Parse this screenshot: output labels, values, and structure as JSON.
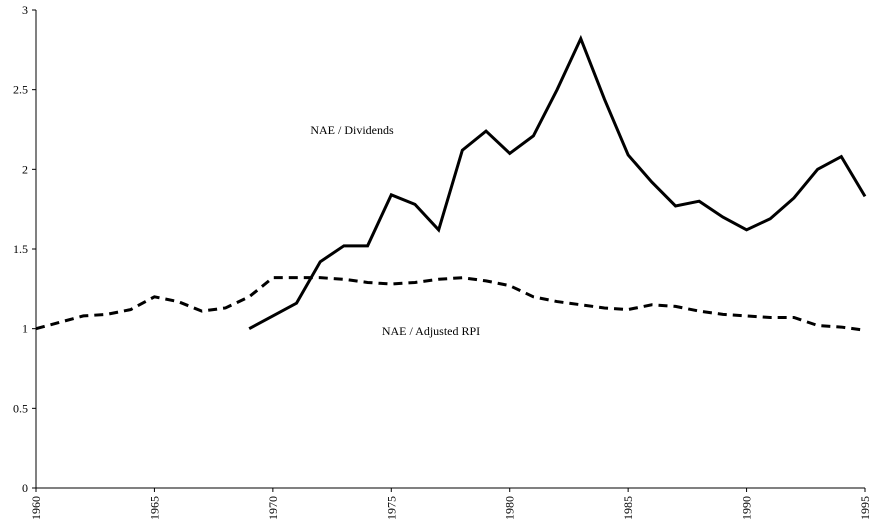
{
  "chart_data": {
    "type": "line",
    "x": [
      1960,
      1961,
      1962,
      1963,
      1964,
      1965,
      1966,
      1967,
      1968,
      1969,
      1970,
      1971,
      1972,
      1973,
      1974,
      1975,
      1976,
      1977,
      1978,
      1979,
      1980,
      1981,
      1982,
      1983,
      1984,
      1985,
      1986,
      1987,
      1988,
      1989,
      1990,
      1991,
      1992,
      1993,
      1994,
      1995
    ],
    "series": [
      {
        "name": "NAE / Dividends",
        "color": "#000000",
        "style": "solid",
        "values": [
          null,
          null,
          null,
          null,
          null,
          null,
          null,
          null,
          null,
          1.0,
          1.08,
          1.16,
          1.42,
          1.52,
          1.52,
          1.84,
          1.78,
          1.62,
          2.12,
          2.24,
          2.1,
          2.21,
          2.5,
          2.82,
          2.44,
          2.09,
          1.92,
          1.77,
          1.8,
          1.7,
          1.62,
          1.69,
          1.82,
          2.0,
          2.08,
          1.83
        ]
      },
      {
        "name": "NAE / Adjusted RPI",
        "color": "#000000",
        "style": "dashed",
        "values": [
          1.0,
          1.04,
          1.08,
          1.09,
          1.12,
          1.2,
          1.17,
          1.11,
          1.13,
          1.2,
          1.32,
          1.32,
          1.32,
          1.31,
          1.29,
          1.28,
          1.29,
          1.31,
          1.32,
          1.3,
          1.27,
          1.2,
          1.17,
          1.15,
          1.13,
          1.12,
          1.15,
          1.14,
          1.11,
          1.09,
          1.08,
          1.07,
          1.07,
          1.02,
          1.01,
          0.99
        ]
      }
    ],
    "xlim": [
      1960,
      1995
    ],
    "xticks": [
      1960,
      1965,
      1970,
      1975,
      1980,
      1985,
      1990,
      1995
    ],
    "ylim": [
      0,
      3
    ],
    "yticks": [
      0,
      0.5,
      1,
      1.5,
      2,
      2.5,
      3
    ],
    "grid": false
  }
}
